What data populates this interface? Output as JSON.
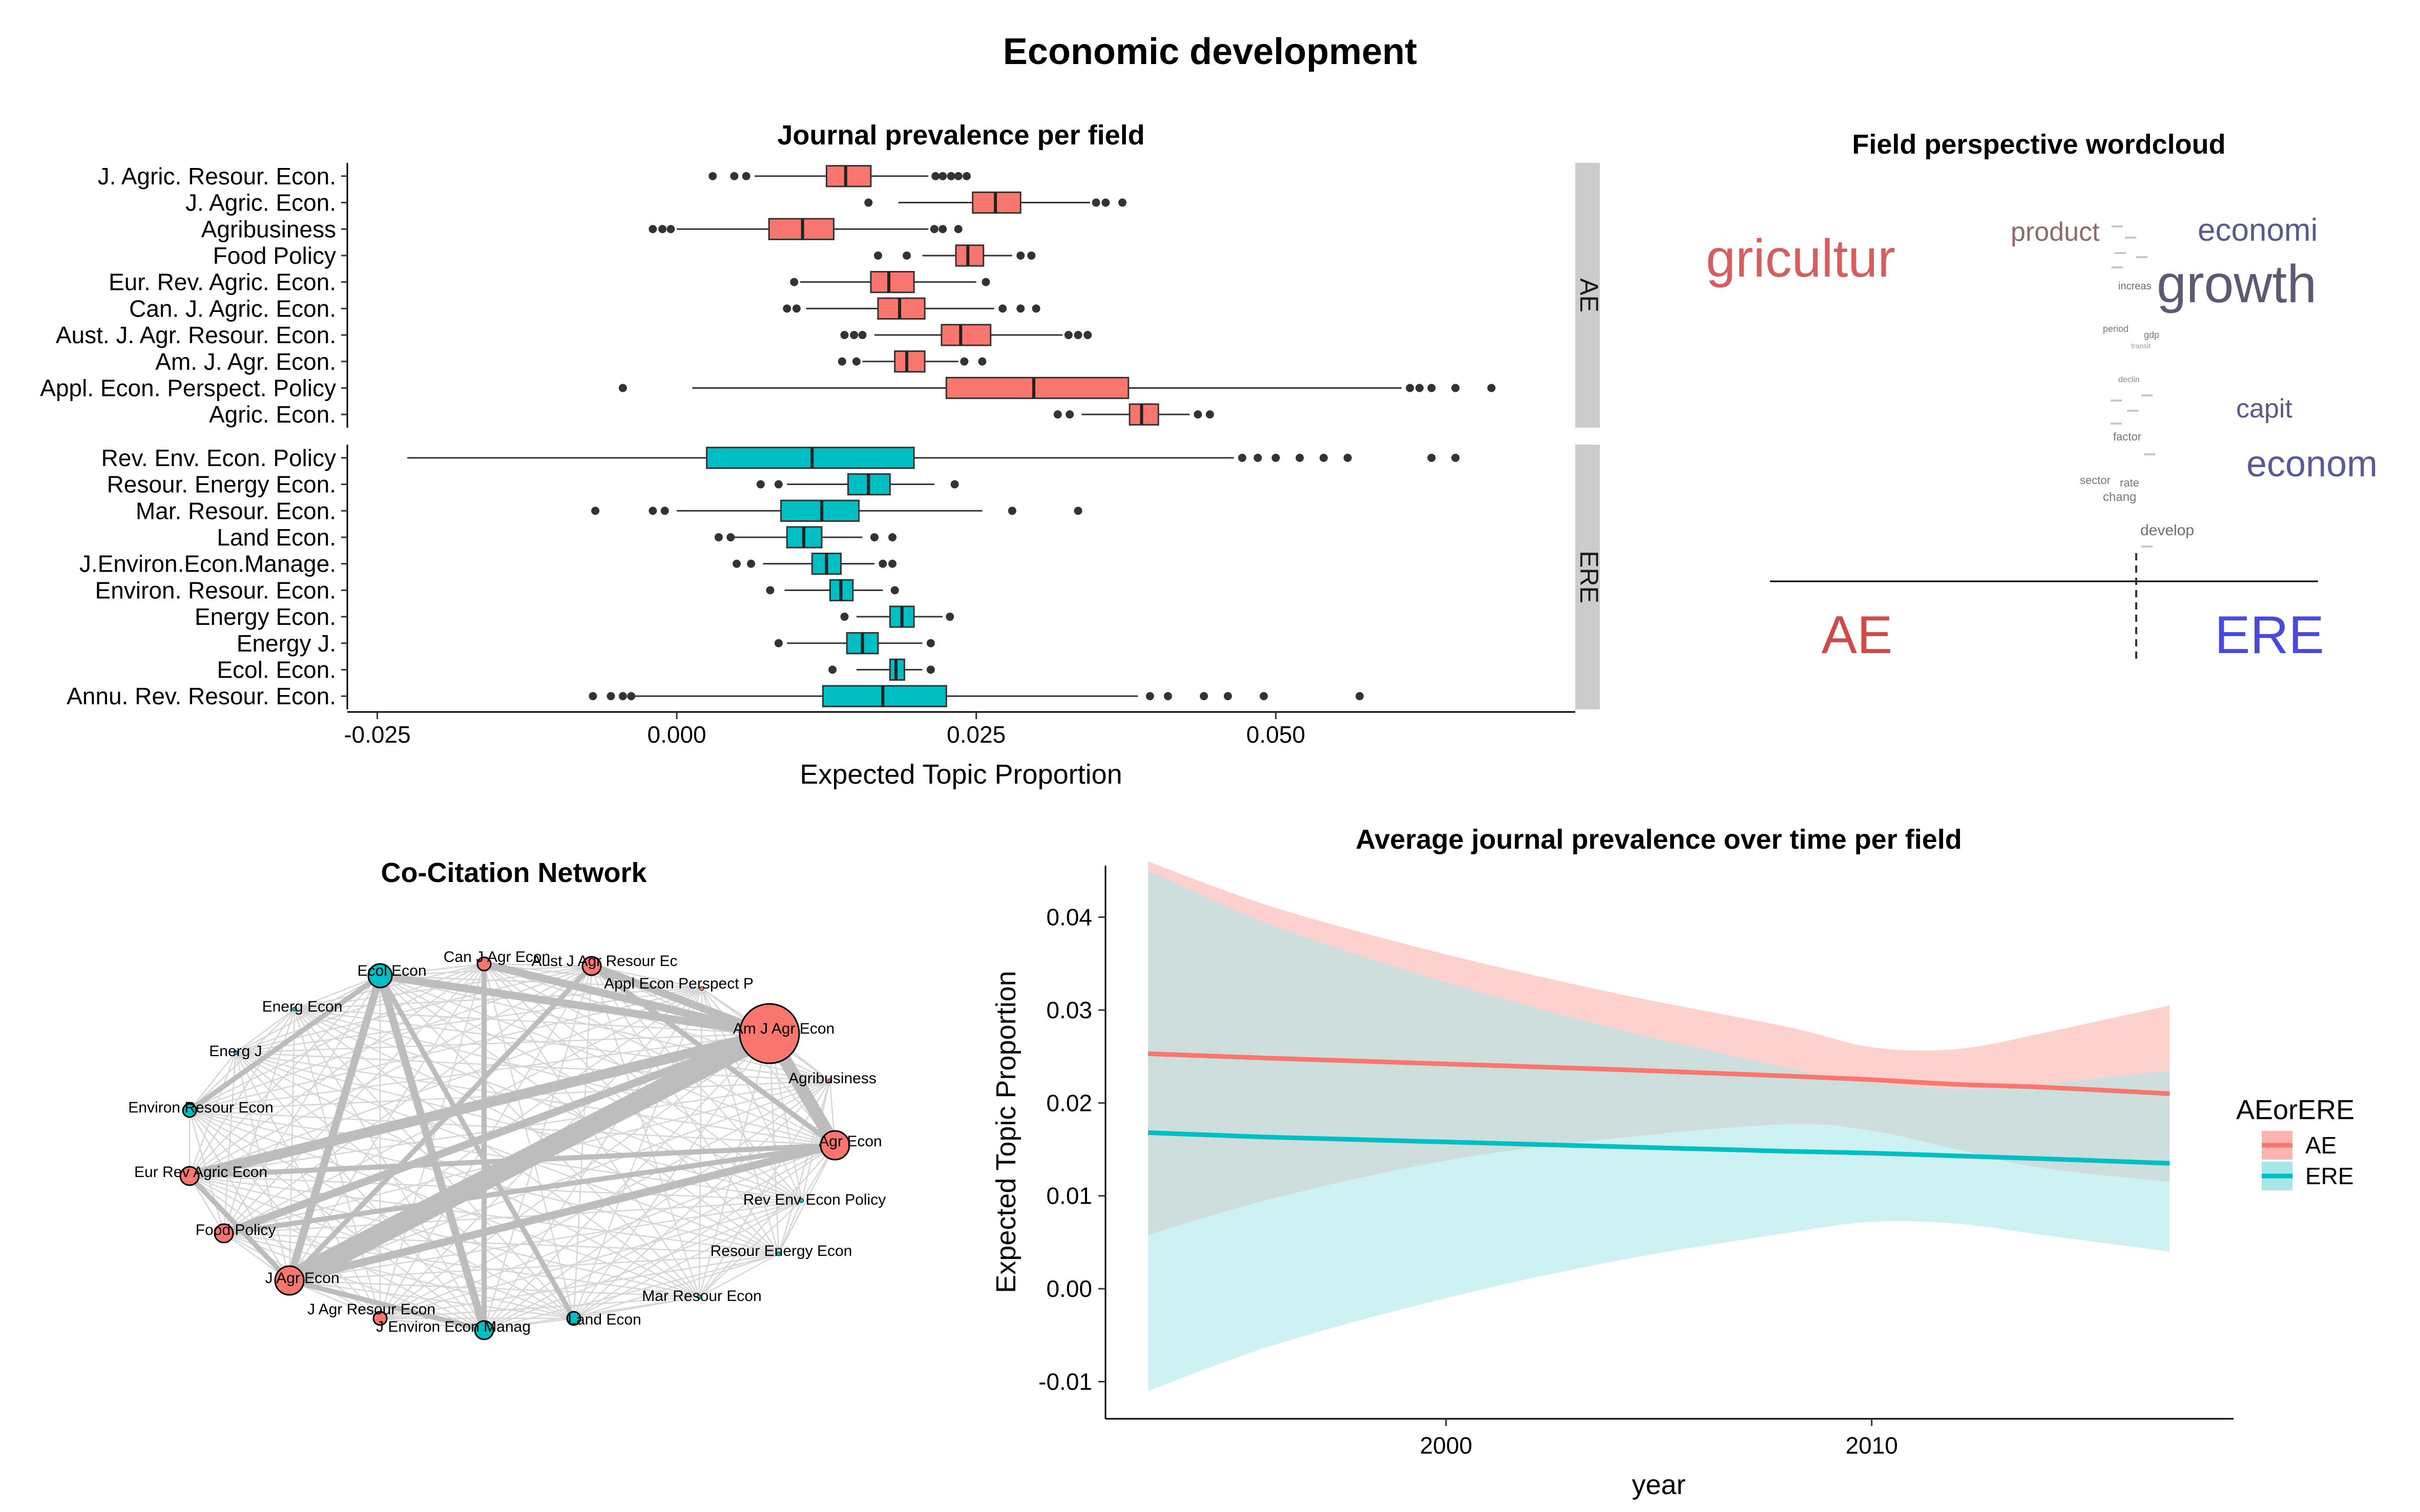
{
  "page_title": "Economic development",
  "chart_data": [
    {
      "type": "boxplot",
      "title": "Journal prevalence per field",
      "xlabel": "Expected Topic Proportion",
      "ylabel": "",
      "xlim": [
        -0.0275,
        0.075
      ],
      "xticks": [
        -0.025,
        0.0,
        0.025,
        0.05
      ],
      "xtick_labels": [
        "-0.025",
        "0.000",
        "0.025",
        "0.050"
      ],
      "colors": {
        "AE": "#F8766D",
        "ERE": "#00BFC4"
      },
      "facets": [
        {
          "name": "AE",
          "journals": [
            {
              "name": "J. Agric. Resour. Econ.",
              "lw": 0.0065,
              "q1": 0.0125,
              "med": 0.0141,
              "q3": 0.0162,
              "uw": 0.021,
              "out": [
                0.003,
                0.0048,
                0.0058,
                0.0216,
                0.0222,
                0.0229,
                0.0235,
                0.0242
              ]
            },
            {
              "name": "J. Agric. Econ.",
              "lw": 0.0185,
              "q1": 0.0247,
              "med": 0.0266,
              "q3": 0.0287,
              "uw": 0.0345,
              "out": [
                0.016,
                0.035,
                0.0358,
                0.0372
              ]
            },
            {
              "name": "Agribusiness",
              "lw": 0.0,
              "q1": 0.0077,
              "med": 0.0105,
              "q3": 0.0131,
              "uw": 0.021,
              "out": [
                -0.002,
                -0.0012,
                -0.0005,
                0.0215,
                0.0222,
                0.0235
              ]
            },
            {
              "name": "Food Policy",
              "lw": 0.0205,
              "q1": 0.0233,
              "med": 0.0243,
              "q3": 0.0256,
              "uw": 0.028,
              "out": [
                0.0168,
                0.0192,
                0.0287,
                0.0296
              ]
            },
            {
              "name": "Eur. Rev. Agric. Econ.",
              "lw": 0.0103,
              "q1": 0.0162,
              "med": 0.0177,
              "q3": 0.0198,
              "uw": 0.025,
              "out": [
                0.0098,
                0.0258
              ]
            },
            {
              "name": "Can. J. Agric. Econ.",
              "lw": 0.0108,
              "q1": 0.0168,
              "med": 0.0186,
              "q3": 0.0207,
              "uw": 0.0265,
              "out": [
                0.0092,
                0.01,
                0.0272,
                0.0287,
                0.03
              ]
            },
            {
              "name": "Aust. J. Agr. Resour. Econ.",
              "lw": 0.0165,
              "q1": 0.0221,
              "med": 0.0237,
              "q3": 0.0262,
              "uw": 0.0322,
              "out": [
                0.014,
                0.0148,
                0.0155,
                0.0327,
                0.0335,
                0.0343
              ]
            },
            {
              "name": "Am. J. Agr. Econ.",
              "lw": 0.0155,
              "q1": 0.0182,
              "med": 0.0192,
              "q3": 0.0207,
              "uw": 0.0235,
              "out": [
                0.0138,
                0.015,
                0.024,
                0.0255
              ]
            },
            {
              "name": "Appl. Econ. Perspect. Policy",
              "lw": 0.0013,
              "q1": 0.0225,
              "med": 0.0298,
              "q3": 0.0377,
              "uw": 0.0605,
              "out": [
                -0.0045,
                0.0612,
                0.062,
                0.063,
                0.065,
                0.068
              ]
            },
            {
              "name": "Agric. Econ.",
              "lw": 0.0338,
              "q1": 0.0378,
              "med": 0.0388,
              "q3": 0.0402,
              "uw": 0.0428,
              "out": [
                0.0318,
                0.0328,
                0.0435,
                0.0445
              ]
            }
          ]
        },
        {
          "name": "ERE",
          "journals": [
            {
              "name": "Rev. Env. Econ. Policy",
              "lw": -0.0225,
              "q1": 0.0025,
              "med": 0.0113,
              "q3": 0.0198,
              "uw": 0.0465,
              "out": [
                0.0472,
                0.0485,
                0.05,
                0.052,
                0.054,
                0.056,
                0.063,
                0.065
              ]
            },
            {
              "name": "Resour. Energy Econ.",
              "lw": 0.0092,
              "q1": 0.0143,
              "med": 0.016,
              "q3": 0.0178,
              "uw": 0.0215,
              "out": [
                0.007,
                0.0085,
                0.0232
              ]
            },
            {
              "name": "Mar. Resour. Econ.",
              "lw": 0.0,
              "q1": 0.0087,
              "med": 0.0121,
              "q3": 0.0152,
              "uw": 0.0255,
              "out": [
                -0.0068,
                -0.002,
                -0.001,
                0.028,
                0.0335
              ]
            },
            {
              "name": "Land Econ.",
              "lw": 0.0048,
              "q1": 0.0092,
              "med": 0.0106,
              "q3": 0.0121,
              "uw": 0.0155,
              "out": [
                0.0035,
                0.0045,
                0.0165,
                0.018
              ]
            },
            {
              "name": "J.Environ.Econ.Manage.",
              "lw": 0.0072,
              "q1": 0.0113,
              "med": 0.0125,
              "q3": 0.0137,
              "uw": 0.0165,
              "out": [
                0.005,
                0.0062,
                0.0172,
                0.018
              ]
            },
            {
              "name": "Environ. Resour. Econ.",
              "lw": 0.009,
              "q1": 0.0128,
              "med": 0.0137,
              "q3": 0.0147,
              "uw": 0.0172,
              "out": [
                0.0078,
                0.0182
              ]
            },
            {
              "name": "Energy Econ.",
              "lw": 0.015,
              "q1": 0.0178,
              "med": 0.0188,
              "q3": 0.0198,
              "uw": 0.0222,
              "out": [
                0.014,
                0.0228
              ]
            },
            {
              "name": "Energy J.",
              "lw": 0.0092,
              "q1": 0.0142,
              "med": 0.0155,
              "q3": 0.0168,
              "uw": 0.0205,
              "out": [
                0.0085,
                0.0212
              ]
            },
            {
              "name": "Ecol. Econ.",
              "lw": 0.015,
              "q1": 0.0178,
              "med": 0.0183,
              "q3": 0.019,
              "uw": 0.0205,
              "out": [
                0.013,
                0.0212
              ]
            },
            {
              "name": "Annu. Rev. Resour. Econ.",
              "lw": -0.0035,
              "q1": 0.0122,
              "med": 0.0172,
              "q3": 0.0225,
              "uw": 0.0385,
              "out": [
                -0.007,
                -0.0055,
                -0.0045,
                -0.0038,
                0.0395,
                0.041,
                0.044,
                0.046,
                0.049,
                0.057
              ]
            }
          ]
        }
      ]
    },
    {
      "type": "wordcloud",
      "title": "Field perspective wordcloud",
      "group_labels": [
        "AE",
        "ERE"
      ],
      "group_colors": {
        "AE": "#D04A4A",
        "ERE": "#4A4ADA"
      },
      "words": [
        {
          "text": "gricultur",
          "group": "AE",
          "color": "#D55E5E"
        },
        {
          "text": "product",
          "group": "AE",
          "color": "#8E6A6A"
        },
        {
          "text": "economi",
          "group": "ERE",
          "color": "#5A5A8A"
        },
        {
          "text": "growth",
          "group": "ERE",
          "color": "#5A5A72"
        },
        {
          "text": "increas",
          "group": "ERE",
          "color": "#6E6E6E"
        },
        {
          "text": "period",
          "group": "ERE",
          "color": "#777777"
        },
        {
          "text": "gdp",
          "group": "ERE",
          "color": "#777777"
        },
        {
          "text": "transit",
          "group": "ERE",
          "color": "#999999"
        },
        {
          "text": "declin",
          "group": "ERE",
          "color": "#888888"
        },
        {
          "text": "capit",
          "group": "ERE",
          "color": "#5A5A8A"
        },
        {
          "text": "factor",
          "group": "ERE",
          "color": "#777777"
        },
        {
          "text": "econom",
          "group": "ERE",
          "color": "#5A5A9A"
        },
        {
          "text": "sector",
          "group": "ERE",
          "color": "#777777"
        },
        {
          "text": "rate",
          "group": "ERE",
          "color": "#777777"
        },
        {
          "text": "chang",
          "group": "ERE",
          "color": "#777777"
        },
        {
          "text": "develop",
          "group": "ERE",
          "color": "#6E6E6E"
        }
      ]
    },
    {
      "type": "network",
      "title": "Co-Citation Network",
      "nodes": [
        {
          "name": "Can J Agr Econ",
          "field": "AE",
          "size": 1
        },
        {
          "name": "Aust J Agr Resour Ec",
          "field": "AE",
          "size": 2
        },
        {
          "name": "Appl Econ Perspect P",
          "field": "AE",
          "size": 0
        },
        {
          "name": "Am J Agr Econ",
          "field": "AE",
          "size": 10
        },
        {
          "name": "Agribusiness",
          "field": "AE",
          "size": 0
        },
        {
          "name": "Agr Econ",
          "field": "AE",
          "size": 4
        },
        {
          "name": "Rev Env Econ Policy",
          "field": "ERE",
          "size": 0
        },
        {
          "name": "Resour Energy Econ",
          "field": "ERE",
          "size": 0
        },
        {
          "name": "Mar Resour Econ",
          "field": "ERE",
          "size": 0
        },
        {
          "name": "Land Econ",
          "field": "ERE",
          "size": 1
        },
        {
          "name": "J Environ Econ Manag",
          "field": "ERE",
          "size": 2
        },
        {
          "name": "J Agr Resour Econ",
          "field": "AE",
          "size": 1
        },
        {
          "name": "J Agr Econ",
          "field": "AE",
          "size": 4
        },
        {
          "name": "Food Policy",
          "field": "AE",
          "size": 2
        },
        {
          "name": "Eur Rev Agric Econ",
          "field": "AE",
          "size": 2
        },
        {
          "name": "Environ Resour Econ",
          "field": "ERE",
          "size": 1
        },
        {
          "name": "Energ J",
          "field": "ERE",
          "size": 0
        },
        {
          "name": "Energ Econ",
          "field": "ERE",
          "size": 0
        },
        {
          "name": "Ecol Econ",
          "field": "ERE",
          "size": 3
        }
      ],
      "strong_edges": [
        [
          "Am J Agr Econ",
          "J Agr Econ",
          8
        ],
        [
          "Am J Agr Econ",
          "Agr Econ",
          5
        ],
        [
          "Am J Agr Econ",
          "Eur Rev Agric Econ",
          4
        ],
        [
          "Am J Agr Econ",
          "Food Policy",
          3
        ],
        [
          "Am J Agr Econ",
          "Ecol Econ",
          3
        ],
        [
          "Am J Agr Econ",
          "Can J Agr Econ",
          3
        ],
        [
          "Am J Agr Econ",
          "Aust J Agr Resour Ec",
          3
        ],
        [
          "Ecol Econ",
          "J Agr Econ",
          3
        ],
        [
          "Ecol Econ",
          "J Environ Econ Manag",
          3
        ],
        [
          "Ecol Econ",
          "Environ Resour Econ",
          2
        ],
        [
          "Ecol Econ",
          "Land Econ",
          2
        ],
        [
          "Agr Econ",
          "J Agr Econ",
          3
        ],
        [
          "Agr Econ",
          "Food Policy",
          2
        ],
        [
          "J Agr Econ",
          "Eur Rev Agric Econ",
          2
        ],
        [
          "Can J Agr Econ",
          "J Environ Econ Manag",
          2
        ],
        [
          "Aust J Agr Resour Ec",
          "J Agr Econ",
          2
        ],
        [
          "Aust J Agr Resour Ec",
          "Agr Econ",
          2
        ],
        [
          "J Agr Econ",
          "J Environ Econ Manag",
          2
        ],
        [
          "Eur Rev Agric Econ",
          "Agr Econ",
          2
        ]
      ]
    },
    {
      "type": "line",
      "title": "Average journal prevalence over time per field",
      "xlabel": "year",
      "ylabel": "Expected Topic Proportion",
      "xlim": [
        1992,
        2018.5
      ],
      "ylim": [
        -0.014,
        0.045
      ],
      "xticks": [
        2000,
        2010
      ],
      "yticks": [
        -0.01,
        0.0,
        0.01,
        0.02,
        0.03,
        0.04
      ],
      "ytick_labels": [
        "-0.01",
        "0.00",
        "0.01",
        "0.02",
        "0.03",
        "0.04"
      ],
      "legend_title": "AEorERE",
      "legend_position": "right",
      "x": [
        1993,
        1996,
        2000,
        2004,
        2008,
        2010,
        2012,
        2014,
        2017
      ],
      "series": [
        {
          "name": "AE",
          "color": "#F8766D",
          "band_color": "#FBB4AE",
          "values": [
            0.0253,
            0.0248,
            0.0242,
            0.0236,
            0.0229,
            0.0225,
            0.022,
            0.0217,
            0.021
          ],
          "lower": [
            0.0058,
            0.0098,
            0.0138,
            0.0162,
            0.0177,
            0.017,
            0.015,
            0.013,
            0.0115
          ],
          "upper": [
            0.046,
            0.041,
            0.036,
            0.0318,
            0.0282,
            0.026,
            0.0258,
            0.0275,
            0.0305
          ]
        },
        {
          "name": "ERE",
          "color": "#00BFC4",
          "band_color": "#A6E8EA",
          "values": [
            0.0168,
            0.0163,
            0.0158,
            0.0153,
            0.0148,
            0.0146,
            0.0143,
            0.014,
            0.0135
          ],
          "lower": [
            -0.011,
            -0.006,
            -0.001,
            0.003,
            0.006,
            0.0072,
            0.007,
            0.0058,
            0.004
          ],
          "upper": [
            0.045,
            0.039,
            0.033,
            0.028,
            0.0238,
            0.0222,
            0.0215,
            0.022,
            0.0235
          ]
        }
      ]
    }
  ]
}
